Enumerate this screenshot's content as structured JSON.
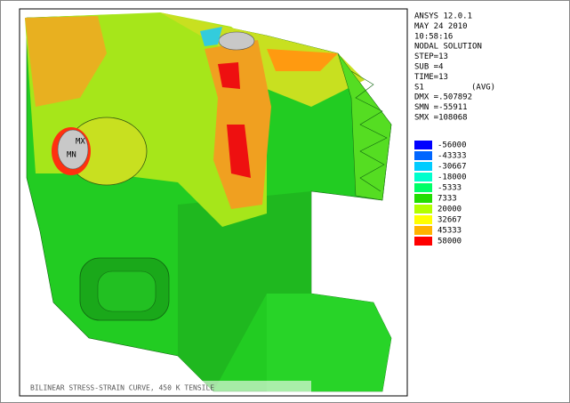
{
  "info": {
    "lines": [
      "ANSYS 12.0.1",
      "MAY 24 2010",
      "10:58:16",
      "NODAL SOLUTION",
      "STEP=13",
      "SUB =4",
      "TIME=13"
    ],
    "quantity": "S1",
    "averaging": "(AVG)",
    "stats": [
      "DMX =.507892",
      "SMN =-55911",
      "SMX =108068"
    ]
  },
  "legend": {
    "values": [
      -56000,
      -43333,
      -30667,
      -18000,
      -5333,
      7333,
      20000,
      32667,
      45333,
      58000
    ],
    "colors": [
      "#0000ff",
      "#0066ff",
      "#00ccff",
      "#00ffcc",
      "#00ff66",
      "#22dd00",
      "#b2ff00",
      "#ffff00",
      "#ffb200",
      "#ff0000"
    ]
  },
  "model": {
    "max_label": "MX",
    "min_label": "MN"
  },
  "footer": "BILINEAR STRESS-STRAIN CURVE, 450 K TENSILE"
}
